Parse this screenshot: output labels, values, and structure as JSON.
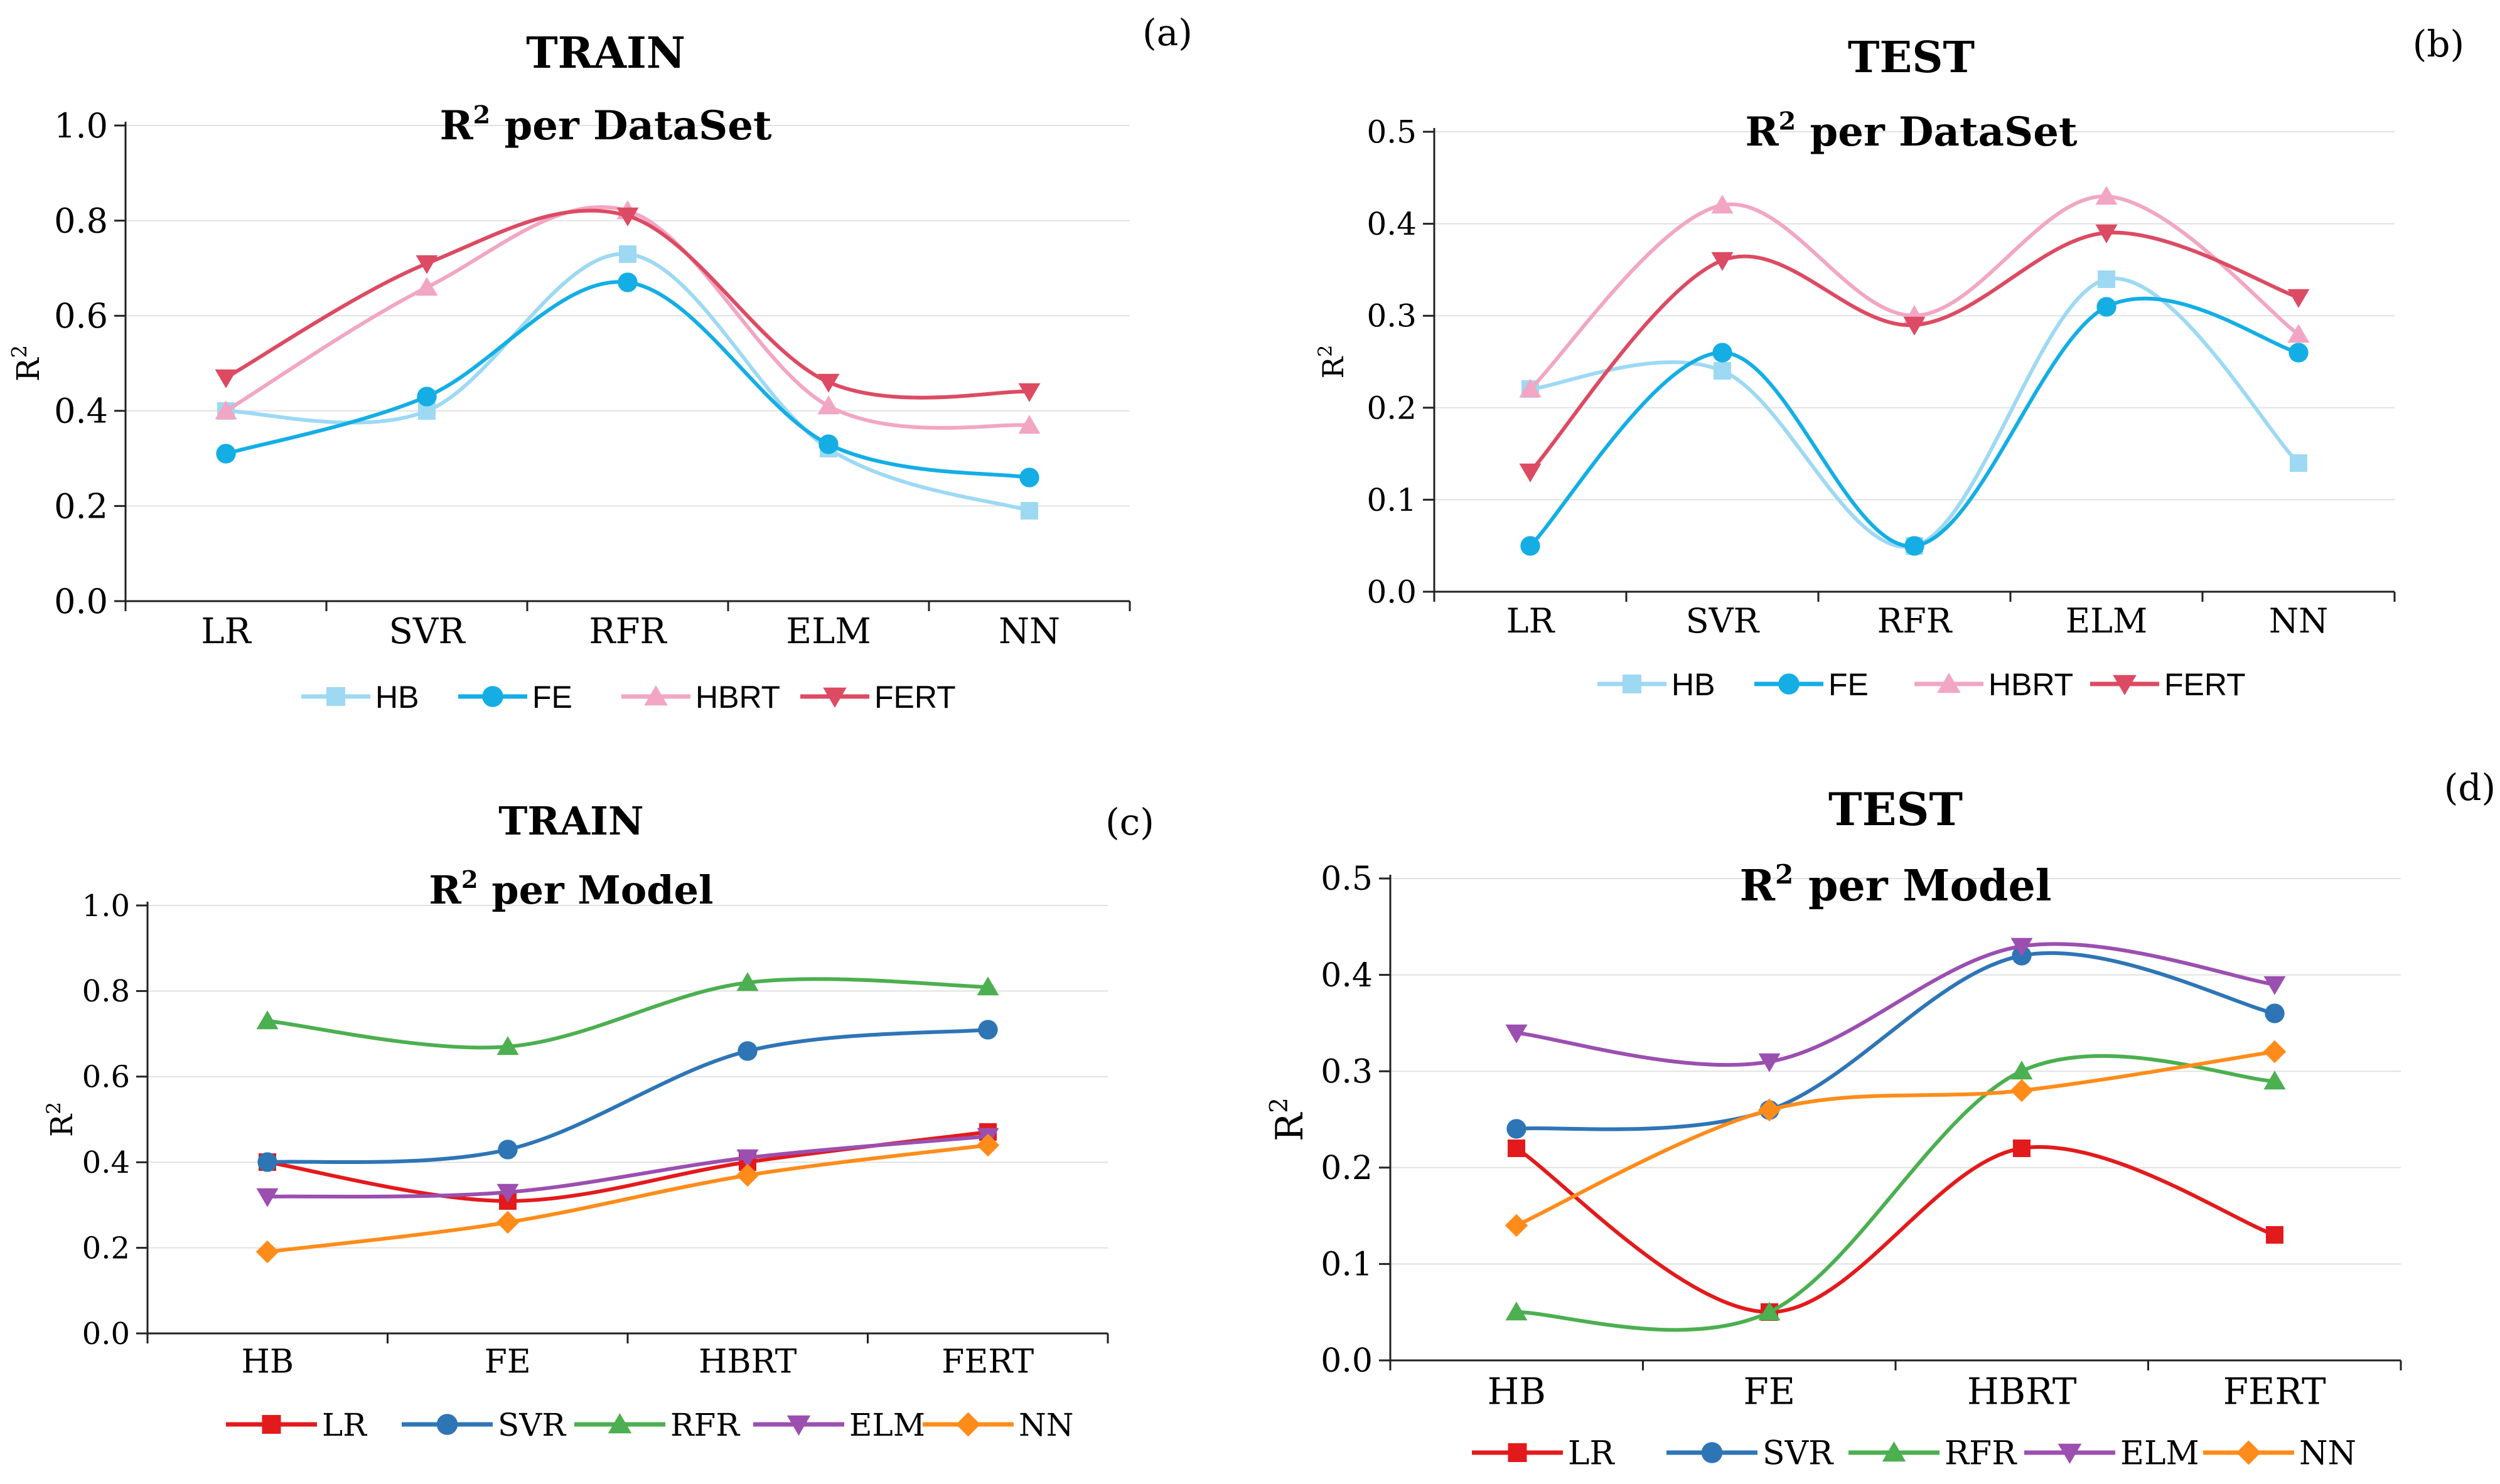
{
  "chart_data": [
    {
      "panel": "(a)",
      "type": "line",
      "title": "TRAIN",
      "subtitle": "per DataSet",
      "subtitle_prefix": "R",
      "subtitle_sup": "2",
      "ylabel": "R",
      "ylabel_sup": "2",
      "xlabel": "",
      "ylim": [
        0,
        1
      ],
      "yticks": [
        "0.0",
        "0.2",
        "0.4",
        "0.6",
        "0.8",
        "1.0"
      ],
      "categories": [
        "LR",
        "SVR",
        "RFR",
        "ELM",
        "NN"
      ],
      "series": [
        {
          "name": "HB",
          "color": "#9dd9f3",
          "marker": "square",
          "values": [
            0.4,
            0.4,
            0.73,
            0.32,
            0.19
          ]
        },
        {
          "name": "FE",
          "color": "#14aee5",
          "marker": "circle",
          "values": [
            0.31,
            0.43,
            0.67,
            0.33,
            0.26
          ]
        },
        {
          "name": "HBRT",
          "color": "#f2a6c4",
          "marker": "triangle-up",
          "values": [
            0.4,
            0.66,
            0.82,
            0.41,
            0.37
          ]
        },
        {
          "name": "FERT",
          "color": "#dc4b63",
          "marker": "triangle-down",
          "values": [
            0.47,
            0.71,
            0.81,
            0.46,
            0.44
          ]
        }
      ]
    },
    {
      "panel": "(b)",
      "type": "line",
      "title": "TEST",
      "subtitle": "per DataSet",
      "subtitle_prefix": "R",
      "subtitle_sup": "2",
      "ylabel": "R",
      "ylabel_sup": "2",
      "xlabel": "",
      "ylim": [
        0,
        0.5
      ],
      "yticks": [
        "0.0",
        "0.1",
        "0.2",
        "0.3",
        "0.4",
        "0.5"
      ],
      "categories": [
        "LR",
        "SVR",
        "RFR",
        "ELM",
        "NN"
      ],
      "series": [
        {
          "name": "HB",
          "color": "#9dd9f3",
          "marker": "square",
          "values": [
            0.22,
            0.24,
            0.05,
            0.34,
            0.14
          ]
        },
        {
          "name": "FE",
          "color": "#14aee5",
          "marker": "circle",
          "values": [
            0.05,
            0.26,
            0.05,
            0.31,
            0.26
          ]
        },
        {
          "name": "HBRT",
          "color": "#f2a6c4",
          "marker": "triangle-up",
          "values": [
            0.22,
            0.42,
            0.3,
            0.43,
            0.28
          ]
        },
        {
          "name": "FERT",
          "color": "#dc4b63",
          "marker": "triangle-down",
          "values": [
            0.13,
            0.36,
            0.29,
            0.39,
            0.32
          ]
        }
      ]
    },
    {
      "panel": "(c)",
      "type": "line",
      "title": "TRAIN",
      "subtitle": "per Model",
      "subtitle_prefix": "R",
      "subtitle_sup": "2",
      "ylabel": "R",
      "ylabel_sup": "2",
      "xlabel": "",
      "ylim": [
        0,
        1
      ],
      "yticks": [
        "0.0",
        "0.2",
        "0.4",
        "0.6",
        "0.8",
        "1.0"
      ],
      "categories": [
        "HB",
        "FE",
        "HBRT",
        "FERT"
      ],
      "series": [
        {
          "name": "LR",
          "color": "#e31a1c",
          "marker": "square",
          "values": [
            0.4,
            0.31,
            0.4,
            0.47
          ]
        },
        {
          "name": "SVR",
          "color": "#2e75b6",
          "marker": "circle",
          "values": [
            0.4,
            0.43,
            0.66,
            0.71
          ]
        },
        {
          "name": "RFR",
          "color": "#4caf50",
          "marker": "triangle-up",
          "values": [
            0.73,
            0.67,
            0.82,
            0.81
          ]
        },
        {
          "name": "ELM",
          "color": "#9b4fb0",
          "marker": "triangle-down",
          "values": [
            0.32,
            0.33,
            0.41,
            0.46
          ]
        },
        {
          "name": "NN",
          "color": "#ff8c1a",
          "marker": "diamond",
          "values": [
            0.19,
            0.26,
            0.37,
            0.44
          ]
        }
      ]
    },
    {
      "panel": "(d)",
      "type": "line",
      "title": "TEST",
      "subtitle": "per Model",
      "subtitle_prefix": "R",
      "subtitle_sup": "2",
      "ylabel": "R",
      "ylabel_sup": "2",
      "xlabel": "",
      "ylim": [
        0,
        0.5
      ],
      "yticks": [
        "0.0",
        "0.1",
        "0.2",
        "0.3",
        "0.4",
        "0.5"
      ],
      "categories": [
        "HB",
        "FE",
        "HBRT",
        "FERT"
      ],
      "series": [
        {
          "name": "LR",
          "color": "#e31a1c",
          "marker": "square",
          "values": [
            0.22,
            0.05,
            0.22,
            0.13
          ]
        },
        {
          "name": "SVR",
          "color": "#2e75b6",
          "marker": "circle",
          "values": [
            0.24,
            0.26,
            0.42,
            0.36
          ]
        },
        {
          "name": "RFR",
          "color": "#4caf50",
          "marker": "triangle-up",
          "values": [
            0.05,
            0.05,
            0.3,
            0.29
          ]
        },
        {
          "name": "ELM",
          "color": "#9b4fb0",
          "marker": "triangle-down",
          "values": [
            0.34,
            0.31,
            0.43,
            0.39
          ]
        },
        {
          "name": "NN",
          "color": "#ff8c1a",
          "marker": "diamond",
          "values": [
            0.14,
            0.26,
            0.28,
            0.32
          ]
        }
      ]
    }
  ]
}
